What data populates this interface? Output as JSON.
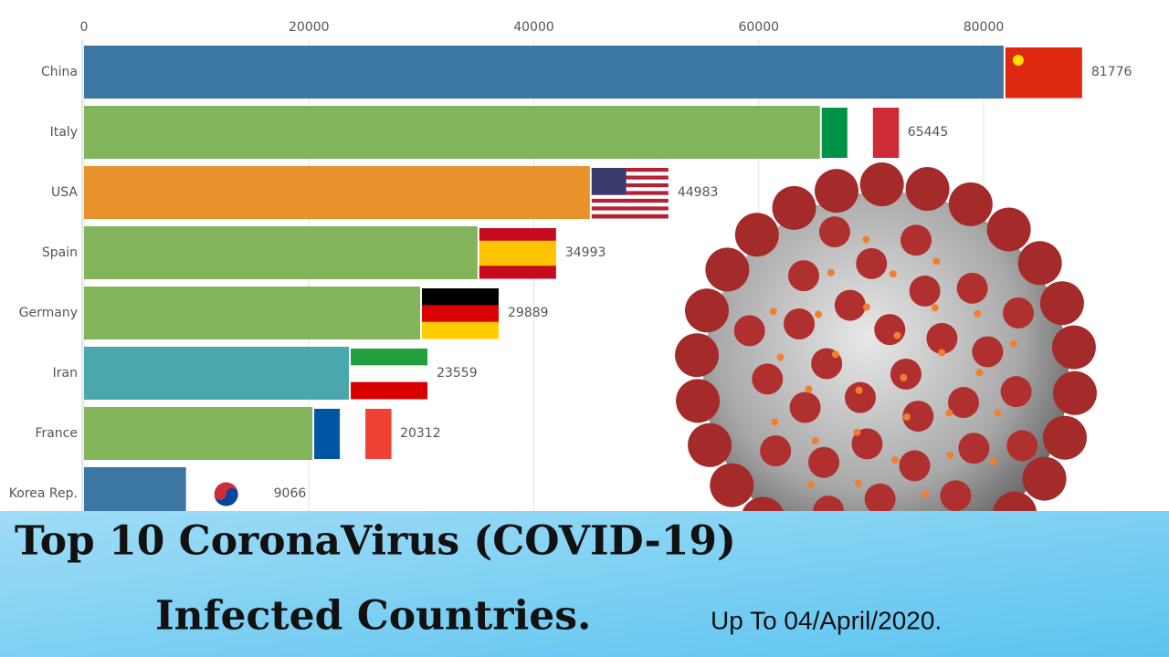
{
  "chart_data": {
    "type": "hbar",
    "title": "Top 10 CoronaVirus (COVID-19)",
    "subtitle": "Infected Countries.",
    "annotation": "Up To 04/April/2020.",
    "categories": [
      "China",
      "Italy",
      "USA",
      "Spain",
      "Germany",
      "Iran",
      "France",
      "Korea Rep."
    ],
    "values": [
      81776,
      65445,
      44983,
      34993,
      29889,
      23559,
      20312,
      9066
    ],
    "colors": [
      "#3b77a2",
      "#82b45c",
      "#e8922c",
      "#82b45c",
      "#82b45c",
      "#4aa7ae",
      "#82b45c",
      "#3b77a2"
    ],
    "xlim": [
      0,
      96000
    ],
    "xticks": [
      0,
      20000,
      40000,
      60000,
      80000
    ],
    "grid": true
  }
}
